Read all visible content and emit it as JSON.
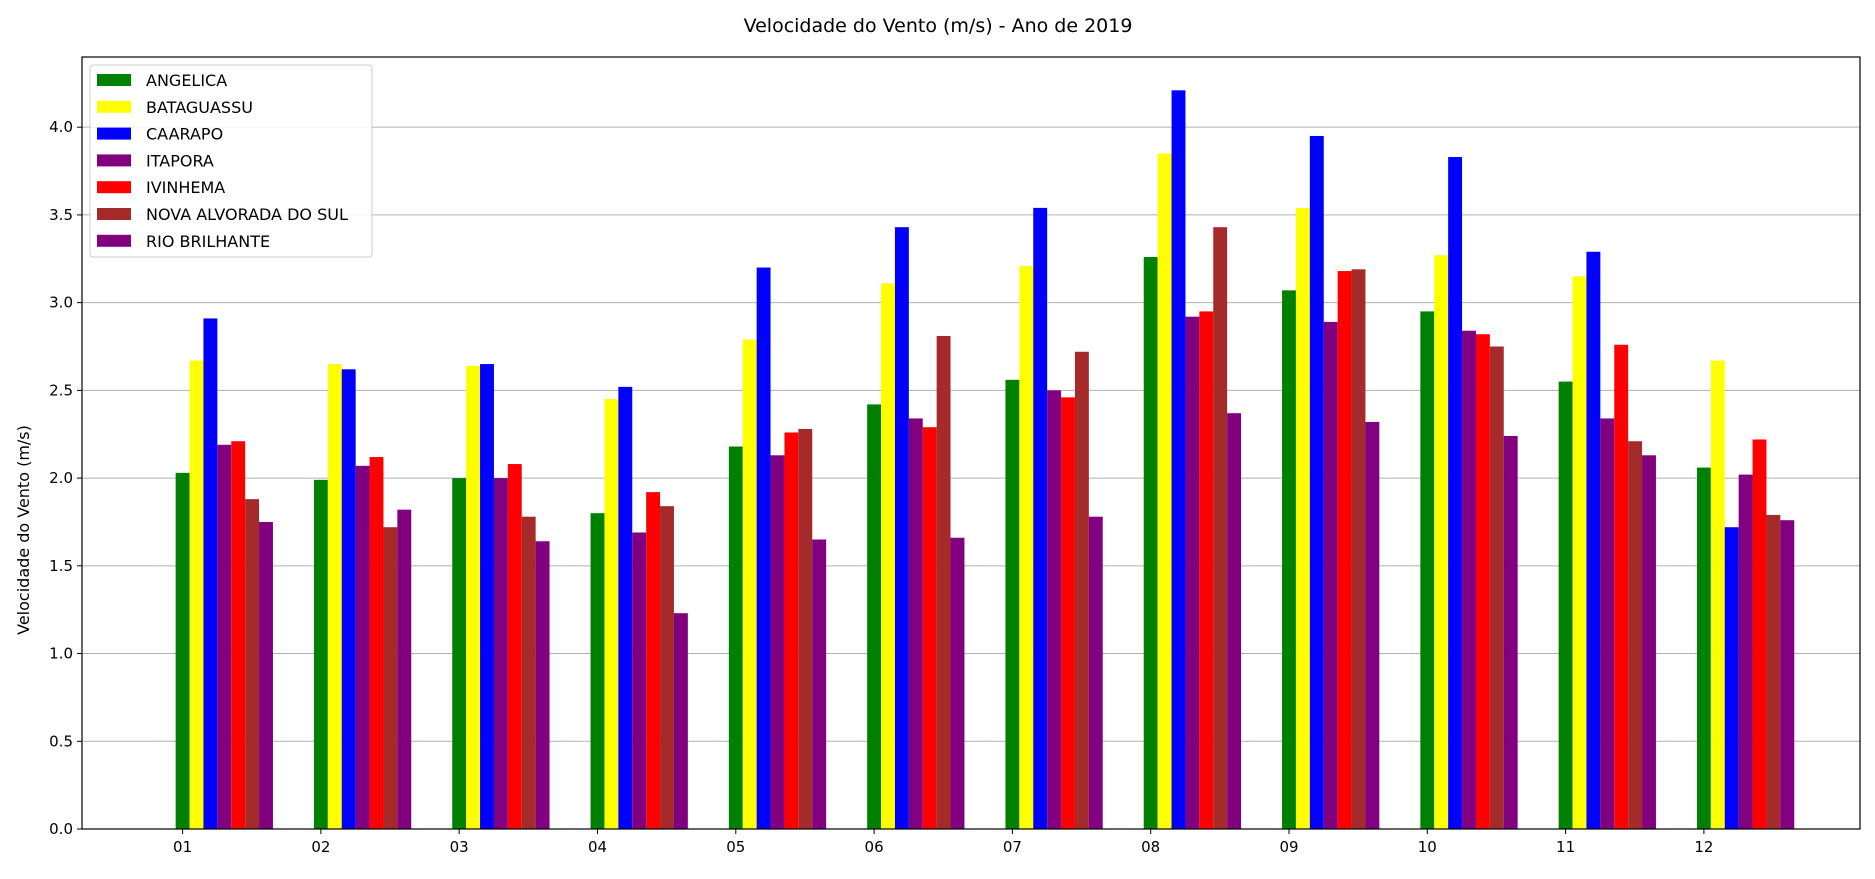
{
  "chart_data": {
    "type": "bar",
    "title": "Velocidade do Vento (m/s) - Ano de 2019",
    "xlabel": "",
    "ylabel": "Velocidade do Vento (m/s)",
    "ylim": [
      0,
      4.4
    ],
    "yticks": [
      "0.0",
      "0.5",
      "1.0",
      "1.5",
      "2.0",
      "2.5",
      "3.0",
      "3.5",
      "4.0"
    ],
    "categories": [
      "01",
      "02",
      "03",
      "04",
      "05",
      "06",
      "07",
      "08",
      "09",
      "10",
      "11",
      "12"
    ],
    "grid": "y",
    "legend_position": "top-left",
    "series": [
      {
        "name": "ANGELICA",
        "color": "#008000",
        "values": [
          2.03,
          1.99,
          2.0,
          1.8,
          2.18,
          2.42,
          2.56,
          3.26,
          3.07,
          2.95,
          2.55,
          2.06
        ]
      },
      {
        "name": "BATAGUASSU",
        "color": "#ffff00",
        "values": [
          2.67,
          2.65,
          2.64,
          2.45,
          2.79,
          3.11,
          3.21,
          3.85,
          3.54,
          3.27,
          3.15,
          2.67
        ]
      },
      {
        "name": "CAARAPO",
        "color": "#0000ff",
        "values": [
          2.91,
          2.62,
          2.65,
          2.52,
          3.2,
          3.43,
          3.54,
          4.21,
          3.95,
          3.83,
          3.29,
          1.72
        ]
      },
      {
        "name": "ITAPORA",
        "color": "#800080",
        "values": [
          2.19,
          2.07,
          2.0,
          1.69,
          2.13,
          2.34,
          2.5,
          2.92,
          2.89,
          2.84,
          2.34,
          2.02
        ]
      },
      {
        "name": "IVINHEMA",
        "color": "#ff0000",
        "values": [
          2.21,
          2.12,
          2.08,
          1.92,
          2.26,
          2.29,
          2.46,
          2.95,
          3.18,
          2.82,
          2.76,
          2.22
        ]
      },
      {
        "name": "NOVA ALVORADA DO SUL",
        "color": "#a52a2a",
        "values": [
          1.88,
          1.72,
          1.78,
          1.84,
          2.28,
          2.81,
          2.72,
          3.43,
          3.19,
          2.75,
          2.21,
          1.79
        ]
      },
      {
        "name": "RIO BRILHANTE",
        "color": "#800080",
        "values": [
          1.75,
          1.82,
          1.64,
          1.23,
          1.65,
          1.66,
          1.78,
          2.37,
          2.32,
          2.24,
          2.13,
          1.76
        ]
      }
    ]
  }
}
